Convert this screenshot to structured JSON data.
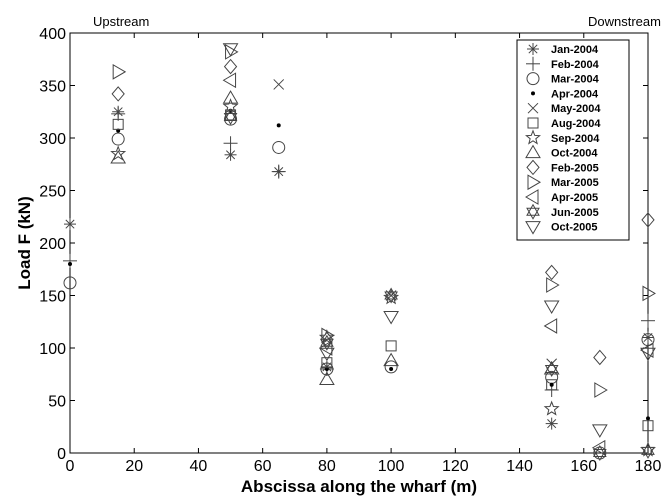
{
  "chart_data": {
    "type": "scatter",
    "xlabel": "Abscissa along the wharf (m)",
    "ylabel": "Load F (kN)",
    "xlim": [
      0,
      180
    ],
    "ylim": [
      0,
      400
    ],
    "xticks": [
      0,
      20,
      40,
      60,
      80,
      100,
      120,
      140,
      160,
      180
    ],
    "yticks": [
      0,
      50,
      100,
      150,
      200,
      250,
      300,
      350,
      400
    ],
    "grid": false,
    "legend_position": "top-right",
    "annotations": [
      {
        "text": "Upstream",
        "position": "top-left"
      },
      {
        "text": "Downstream",
        "position": "top-right"
      }
    ],
    "series": [
      {
        "name": "Jan-2004",
        "marker": "asterisk",
        "points": [
          [
            0,
            218
          ],
          [
            15,
            325
          ],
          [
            50,
            284
          ],
          [
            65,
            268
          ],
          [
            80,
            82
          ],
          [
            150,
            28
          ],
          [
            180,
            110
          ]
        ]
      },
      {
        "name": "Feb-2004",
        "marker": "plus",
        "points": [
          [
            0,
            183
          ],
          [
            15,
            323
          ],
          [
            50,
            295
          ],
          [
            65,
            268
          ],
          [
            80,
            80
          ],
          [
            150,
            60
          ],
          [
            180,
            126
          ]
        ]
      },
      {
        "name": "Mar-2004",
        "marker": "circle",
        "points": [
          [
            0,
            162
          ],
          [
            15,
            299
          ],
          [
            50,
            318
          ],
          [
            65,
            291
          ],
          [
            80,
            80
          ],
          [
            100,
            82
          ],
          [
            150,
            72
          ],
          [
            165,
            0
          ],
          [
            180,
            108
          ]
        ]
      },
      {
        "name": "Apr-2004",
        "marker": "dot",
        "points": [
          [
            0,
            180
          ],
          [
            15,
            307
          ],
          [
            50,
            326
          ],
          [
            65,
            312
          ],
          [
            80,
            80
          ],
          [
            100,
            80
          ],
          [
            150,
            65
          ],
          [
            180,
            33
          ]
        ]
      },
      {
        "name": "May-2004",
        "marker": "x",
        "points": [
          [
            65,
            351
          ],
          [
            100,
            150
          ],
          [
            150,
            85
          ]
        ]
      },
      {
        "name": "Aug-2004",
        "marker": "square",
        "points": [
          [
            15,
            313
          ],
          [
            50,
            322
          ],
          [
            80,
            86
          ],
          [
            100,
            102
          ],
          [
            150,
            65
          ],
          [
            180,
            26
          ]
        ]
      },
      {
        "name": "Sep-2004",
        "marker": "star",
        "points": [
          [
            15,
            285
          ],
          [
            50,
            330
          ],
          [
            80,
            110
          ],
          [
            100,
            148
          ],
          [
            150,
            42
          ],
          [
            180,
            3
          ]
        ]
      },
      {
        "name": "Oct-2004",
        "marker": "triangle-up",
        "points": [
          [
            15,
            281
          ],
          [
            50,
            338
          ],
          [
            80,
            70
          ],
          [
            100,
            88
          ],
          [
            150,
            80
          ]
        ]
      },
      {
        "name": "Feb-2005",
        "marker": "diamond",
        "points": [
          [
            15,
            342
          ],
          [
            50,
            368
          ],
          [
            80,
            108
          ],
          [
            150,
            172
          ],
          [
            165,
            91
          ],
          [
            180,
            222
          ]
        ]
      },
      {
        "name": "Mar-2005",
        "marker": "triangle-right",
        "points": [
          [
            15,
            363
          ],
          [
            50,
            382
          ],
          [
            80,
            112
          ],
          [
            150,
            160
          ],
          [
            165,
            60
          ],
          [
            180,
            152
          ]
        ]
      },
      {
        "name": "Apr-2005",
        "marker": "triangle-left",
        "points": [
          [
            50,
            355
          ],
          [
            80,
            100
          ],
          [
            150,
            121
          ],
          [
            165,
            5
          ],
          [
            180,
            98
          ]
        ]
      },
      {
        "name": "Jun-2005",
        "marker": "hexagram",
        "points": [
          [
            50,
            320
          ],
          [
            80,
            105
          ],
          [
            100,
            150
          ],
          [
            150,
            80
          ],
          [
            165,
            0
          ],
          [
            180,
            2
          ]
        ]
      },
      {
        "name": "Oct-2005",
        "marker": "triangle-down",
        "points": [
          [
            50,
            385
          ],
          [
            80,
            95
          ],
          [
            100,
            130
          ],
          [
            150,
            140
          ],
          [
            165,
            22
          ],
          [
            180,
            95
          ]
        ]
      }
    ]
  }
}
